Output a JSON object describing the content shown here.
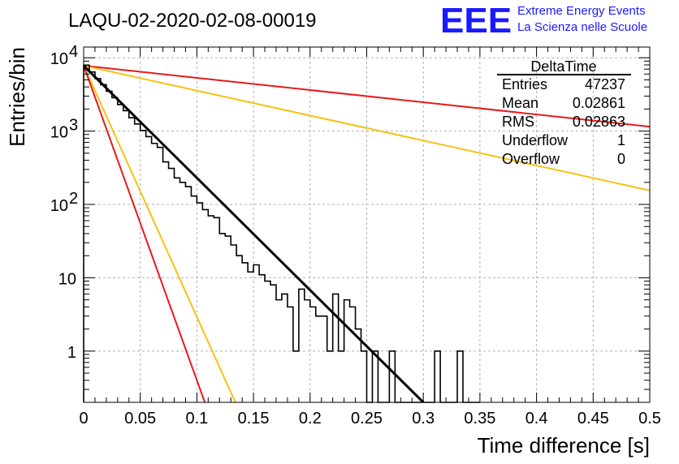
{
  "header": {
    "title": "LAQU-02-2020-02-08-00019",
    "logo": {
      "mark": "EEE",
      "line1": "Extreme Energy Events",
      "line2": "La Scienza nelle Scuole",
      "color": "#1a1aff"
    }
  },
  "stats_box": {
    "title": "DeltaTime",
    "rows": [
      {
        "label": "Entries",
        "value": "47237"
      },
      {
        "label": "Mean",
        "value": "0.02861"
      },
      {
        "label": "RMS",
        "value": "0.02863"
      },
      {
        "label": "Underflow",
        "value": "1"
      },
      {
        "label": "Overflow",
        "value": "0"
      }
    ]
  },
  "chart_data": {
    "type": "line",
    "xlabel": "Time difference [s]",
    "ylabel": "Entries/bin",
    "xlim": [
      0,
      0.5
    ],
    "ylim": [
      0.2,
      14000
    ],
    "yscale": "log",
    "grid": true,
    "x_ticks": [
      "0",
      "0.05",
      "0.1",
      "0.15",
      "0.2",
      "0.25",
      "0.3",
      "0.35",
      "0.4",
      "0.45",
      "0.5"
    ],
    "y_ticks": [
      {
        "value": 1,
        "base": "1",
        "exp": ""
      },
      {
        "value": 10,
        "base": "10",
        "exp": ""
      },
      {
        "value": 100,
        "base": "10",
        "exp": "2"
      },
      {
        "value": 1000,
        "base": "10",
        "exp": "3"
      },
      {
        "value": 10000,
        "base": "10",
        "exp": "4"
      }
    ],
    "histogram": {
      "bin_width": 0.005,
      "x_start": 0,
      "color": "#000000",
      "values": [
        7900,
        6400,
        5200,
        4300,
        3500,
        2850,
        2300,
        1900,
        1520,
        1250,
        1020,
        840,
        680,
        600,
        380,
        310,
        230,
        200,
        175,
        130,
        105,
        85,
        70,
        66,
        40,
        37,
        28,
        20,
        16,
        12,
        15,
        11,
        9,
        8,
        5,
        6,
        4,
        1,
        7,
        5,
        4,
        3,
        3,
        1,
        6,
        1,
        5,
        4,
        2,
        1,
        0,
        1,
        0,
        0,
        1,
        0,
        0,
        0,
        0,
        0,
        0,
        0,
        1,
        0,
        0,
        0,
        1,
        0,
        0,
        0
      ]
    },
    "series": [
      {
        "name": "",
        "color": "#000000",
        "x": [
          0,
          0.3
        ],
        "y": [
          7800,
          0.2
        ]
      },
      {
        "name": "",
        "color": "#e8191b",
        "x": [
          0,
          0.5
        ],
        "y": [
          7800,
          1150
        ]
      },
      {
        "name": "",
        "color": "#f5c211",
        "x": [
          0,
          0.5
        ],
        "y": [
          7800,
          155
        ]
      },
      {
        "name": "",
        "color": "#f5c211",
        "x": [
          0,
          0.134
        ],
        "y": [
          7800,
          0.2
        ]
      },
      {
        "name": "",
        "color": "#e8191b",
        "x": [
          0,
          0.107
        ],
        "y": [
          7800,
          0.2
        ]
      }
    ]
  }
}
